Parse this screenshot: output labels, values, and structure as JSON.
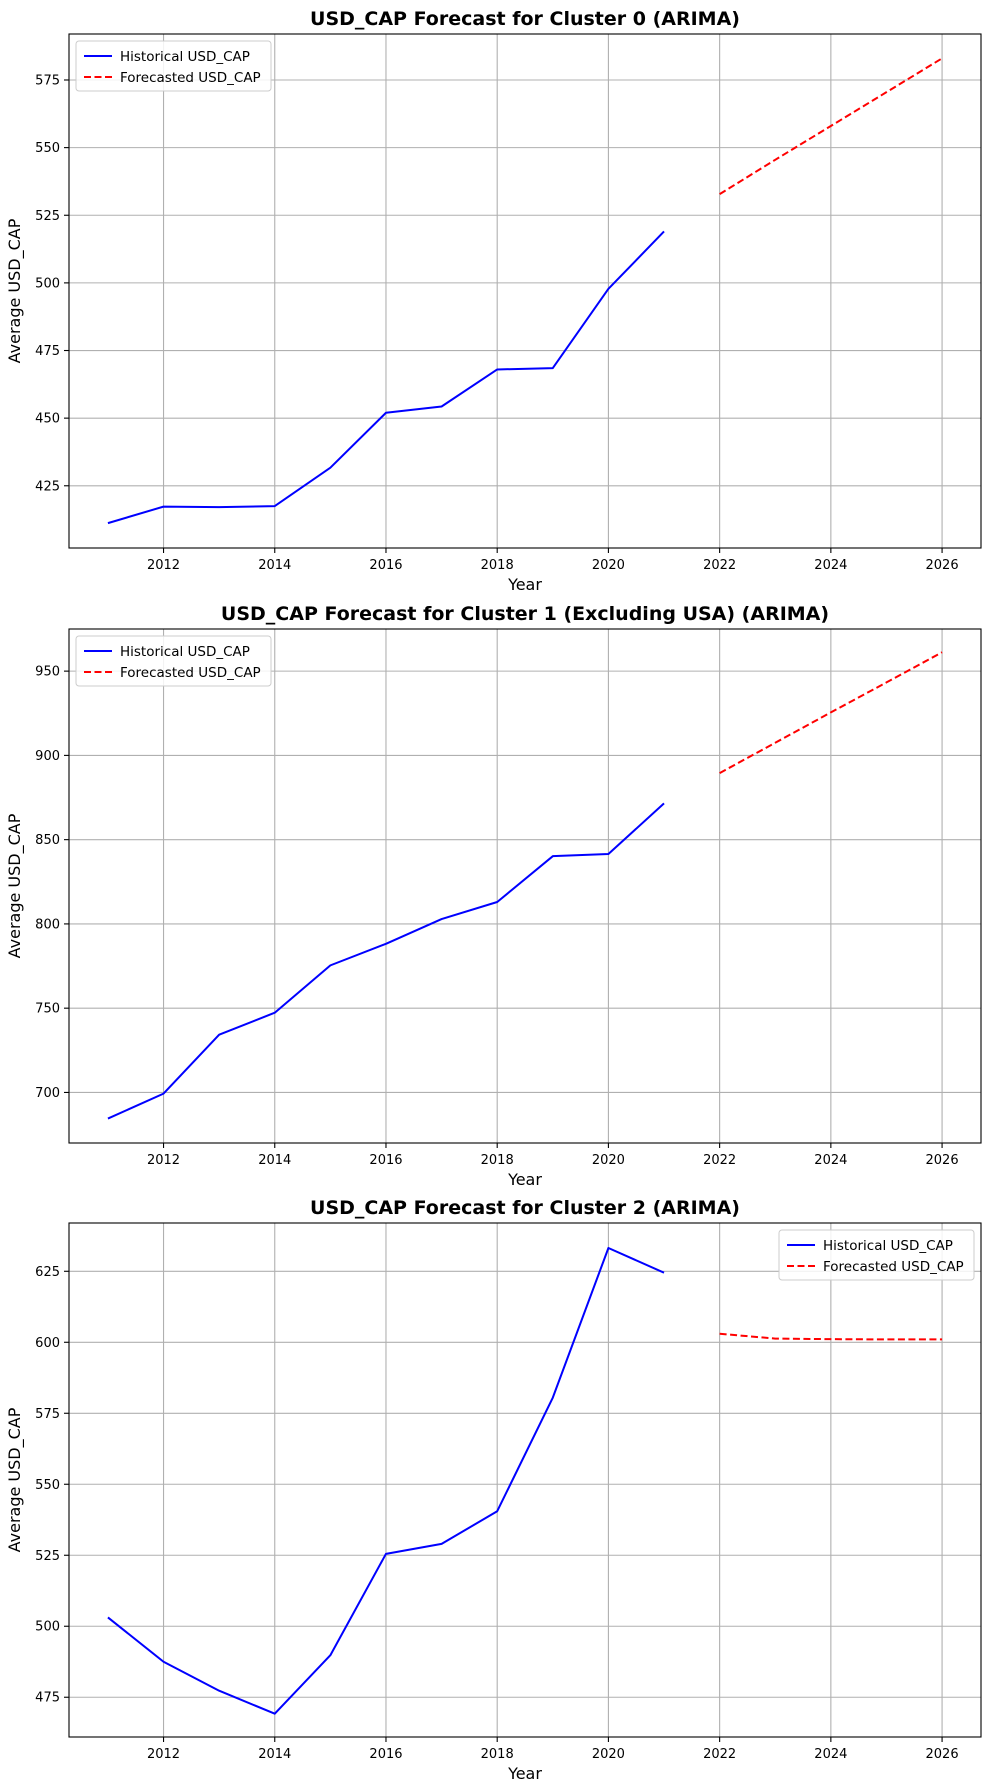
{
  "colors": {
    "historical": "#0000ff",
    "forecast": "#ff0000",
    "grid": "#b0b0b0",
    "axes": "#000000",
    "legend_border": "#cccccc"
  },
  "chart_data": [
    {
      "type": "line",
      "title": "USD_CAP Forecast for Cluster 0 (ARIMA)",
      "xlabel": "Year",
      "ylabel": "Average USD_CAP",
      "xlim": [
        2010.3,
        2026.7
      ],
      "ylim": [
        402,
        592
      ],
      "xticks": [
        2012,
        2014,
        2016,
        2018,
        2020,
        2022,
        2024,
        2026
      ],
      "yticks": [
        425,
        450,
        475,
        500,
        525,
        550,
        575
      ],
      "grid": true,
      "legend_position": "upper-left",
      "series": [
        {
          "name": "Historical USD_CAP",
          "style": "solid",
          "color": "#0000ff",
          "x": [
            2011,
            2012,
            2013,
            2014,
            2015,
            2016,
            2017,
            2018,
            2019,
            2020,
            2021
          ],
          "y": [
            411.2,
            417.3,
            417.1,
            417.5,
            431.7,
            452.0,
            454.3,
            468.0,
            468.5,
            497.8,
            519.0
          ]
        },
        {
          "name": "Forecasted USD_CAP",
          "style": "dashed",
          "color": "#ff0000",
          "x": [
            2022,
            2023,
            2024,
            2025,
            2026
          ],
          "y": [
            532.8,
            545.5,
            558.0,
            570.5,
            583.0
          ]
        }
      ]
    },
    {
      "type": "line",
      "title": "USD_CAP Forecast for Cluster 1 (Excluding USA) (ARIMA)",
      "xlabel": "Year",
      "ylabel": "Average USD_CAP",
      "xlim": [
        2010.3,
        2026.7
      ],
      "ylim": [
        670,
        975
      ],
      "xticks": [
        2012,
        2014,
        2016,
        2018,
        2020,
        2022,
        2024,
        2026
      ],
      "yticks": [
        700,
        750,
        800,
        850,
        900,
        950
      ],
      "grid": true,
      "legend_position": "upper-left",
      "series": [
        {
          "name": "Historical USD_CAP",
          "style": "solid",
          "color": "#0000ff",
          "x": [
            2011,
            2012,
            2013,
            2014,
            2015,
            2016,
            2017,
            2018,
            2019,
            2020,
            2021
          ],
          "y": [
            684.5,
            699.3,
            734.3,
            747.3,
            775.4,
            788.2,
            802.9,
            813.0,
            840.2,
            841.5,
            871.5
          ]
        },
        {
          "name": "Forecasted USD_CAP",
          "style": "dashed",
          "color": "#ff0000",
          "x": [
            2022,
            2023,
            2024,
            2025,
            2026
          ],
          "y": [
            889.5,
            907.5,
            925.5,
            943.3,
            961.2
          ]
        }
      ]
    },
    {
      "type": "line",
      "title": "USD_CAP Forecast for Cluster 2 (ARIMA)",
      "xlabel": "Year",
      "ylabel": "Average USD_CAP",
      "xlim": [
        2010.3,
        2026.7
      ],
      "ylim": [
        461,
        642
      ],
      "xticks": [
        2012,
        2014,
        2016,
        2018,
        2020,
        2022,
        2024,
        2026
      ],
      "yticks": [
        475,
        500,
        525,
        550,
        575,
        600,
        625
      ],
      "grid": true,
      "legend_position": "upper-right",
      "series": [
        {
          "name": "Historical USD_CAP",
          "style": "solid",
          "color": "#0000ff",
          "x": [
            2011,
            2012,
            2013,
            2014,
            2015,
            2016,
            2017,
            2018,
            2019,
            2020,
            2021
          ],
          "y": [
            503.1,
            487.5,
            477.3,
            469.2,
            489.8,
            525.5,
            529.0,
            540.5,
            580.5,
            633.2,
            624.5
          ]
        },
        {
          "name": "Forecasted USD_CAP",
          "style": "dashed",
          "color": "#ff0000",
          "x": [
            2022,
            2023,
            2024,
            2025,
            2026
          ],
          "y": [
            603.0,
            601.3,
            601.1,
            601.0,
            601.0
          ]
        }
      ]
    }
  ]
}
